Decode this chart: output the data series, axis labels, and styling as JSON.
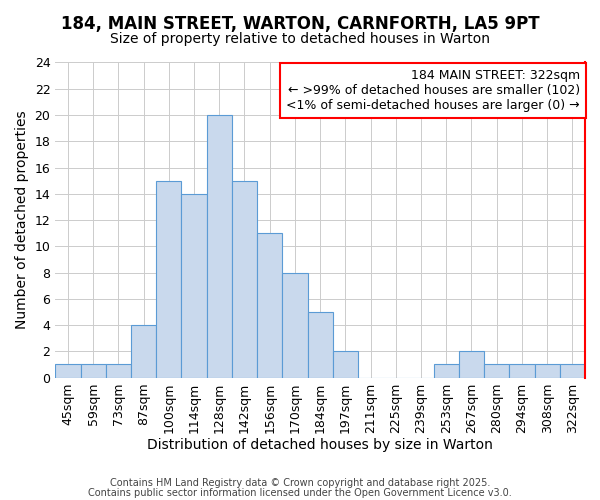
{
  "title1": "184, MAIN STREET, WARTON, CARNFORTH, LA5 9PT",
  "title2": "Size of property relative to detached houses in Warton",
  "xlabel": "Distribution of detached houses by size in Warton",
  "ylabel": "Number of detached properties",
  "categories": [
    "45sqm",
    "59sqm",
    "73sqm",
    "87sqm",
    "100sqm",
    "114sqm",
    "128sqm",
    "142sqm",
    "156sqm",
    "170sqm",
    "184sqm",
    "197sqm",
    "211sqm",
    "225sqm",
    "239sqm",
    "253sqm",
    "267sqm",
    "280sqm",
    "294sqm",
    "308sqm",
    "322sqm"
  ],
  "values": [
    1,
    1,
    1,
    4,
    15,
    14,
    20,
    15,
    11,
    8,
    5,
    2,
    0,
    0,
    0,
    1,
    2,
    1,
    1,
    1,
    1
  ],
  "bar_color": "#c9d9ed",
  "bar_edge_color": "#5b9bd5",
  "background_color": "#ffffff",
  "grid_color": "#cccccc",
  "annotation_line1": "184 MAIN STREET: 322sqm",
  "annotation_line2": "← >99% of detached houses are smaller (102)",
  "annotation_line3": "<1% of semi-detached houses are larger (0) →",
  "annotation_box_edge_color": "#ff0000",
  "red_line_index": 20,
  "ylim": [
    0,
    24
  ],
  "yticks": [
    0,
    2,
    4,
    6,
    8,
    10,
    12,
    14,
    16,
    18,
    20,
    22,
    24
  ],
  "title_fontsize": 12,
  "subtitle_fontsize": 10,
  "axis_label_fontsize": 10,
  "tick_fontsize": 9,
  "annotation_fontsize": 9,
  "footer_text1": "Contains HM Land Registry data © Crown copyright and database right 2025.",
  "footer_text2": "Contains public sector information licensed under the Open Government Licence v3.0."
}
